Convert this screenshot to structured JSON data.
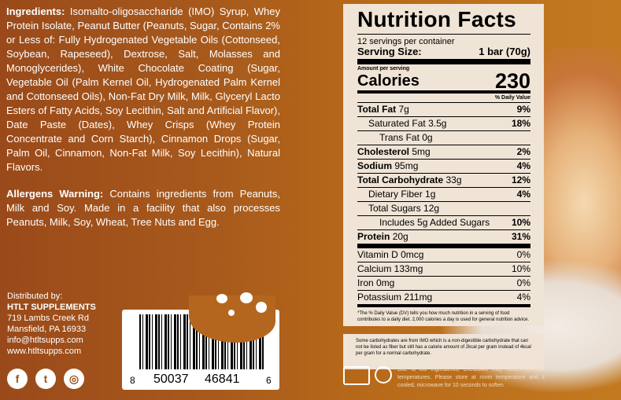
{
  "ingredients": {
    "label": "Ingredients:",
    "text": "Isomalto-oligosaccharide (IMO) Syrup, Whey Protein Isolate, Peanut Butter (Peanuts, Sugar, Contains 2% or Less of: Fully Hydrogenated Vegetable Oils (Cottonseed, Soybean, Rapeseed), Dextrose, Salt, Molasses and Monoglycerides), White Chocolate Coating (Sugar, Vegetable Oil (Palm Kernel Oil, Hydrogenated Palm Kernel and Cottonseed Oils), Non-Fat Dry Milk, Milk, Glyceryl Lacto Esters of Fatty Acids, Soy Lecithin, Salt and Artificial Flavor), Date Paste (Dates), Whey Crisps (Whey Protein Concentrate and Corn Starch), Cinnamon Drops (Sugar, Palm Oil, Cinnamon, Non-Fat Milk, Soy Lecithin), Natural Flavors."
  },
  "allergens": {
    "label": "Allergens Warning:",
    "text": "Contains ingredients from Peanuts, Milk and Soy. Made in a facility that also processes Peanuts, Milk, Soy, Wheat, Tree Nuts and Egg."
  },
  "distributor": {
    "label": "Distributed by:",
    "company": "HTLT SUPPLEMENTS",
    "address1": "719 Lambs Creek Rd",
    "address2": "Mansfield, PA 16933",
    "email": "info@htltsupps.com",
    "website": "www.htltsupps.com"
  },
  "social": [
    {
      "icon": "facebook-icon",
      "glyph": "f"
    },
    {
      "icon": "twitter-icon",
      "glyph": "t"
    },
    {
      "icon": "instagram-icon",
      "glyph": "◎"
    }
  ],
  "barcode": {
    "first": "8",
    "left": "50037",
    "right": "46841",
    "check": "6"
  },
  "nutrition": {
    "title": "Nutrition Facts",
    "servings": "12 servings per container",
    "serving_size_label": "Serving Size:",
    "serving_size": "1 bar (70g)",
    "amount_label": "Amount per serving",
    "calories_label": "Calories",
    "calories": "230",
    "dv_label": "% Daily Value",
    "rows": [
      {
        "name": "Total Fat",
        "amt": "7g",
        "dv": "9%",
        "bold": true
      },
      {
        "name": "Saturated Fat",
        "amt": "3.5g",
        "dv": "18%"
      },
      {
        "name": "Trans Fat",
        "amt": "0g",
        "dv": ""
      },
      {
        "name": "Cholesterol",
        "amt": "5mg",
        "dv": "2%",
        "bold": true
      },
      {
        "name": "Sodium",
        "amt": "95mg",
        "dv": "4%",
        "bold": true
      },
      {
        "name": "Total Carbohydrate",
        "amt": "33g",
        "dv": "12%",
        "bold": true
      },
      {
        "name": "Dietary Fiber",
        "amt": "1g",
        "dv": "4%"
      },
      {
        "name": "Total Sugars",
        "amt": "12g",
        "dv": ""
      },
      {
        "name": "Includes 5g Added Sugars",
        "amt": "",
        "dv": "10%"
      },
      {
        "name": "Protein",
        "amt": "20g",
        "dv": "31%",
        "bold": true
      }
    ],
    "vitamins": [
      {
        "name": "Vitamin D 0mcg",
        "dv": "0%"
      },
      {
        "name": "Calcium 133mg",
        "dv": "10%"
      },
      {
        "name": "Iron 0mg",
        "dv": "0%"
      },
      {
        "name": "Potassium 211mg",
        "dv": "4%"
      }
    ],
    "footnote": "*The % Daily Value (DV) tells you how much nutrition in a serving of food contributes to a daily diet. 2,000 calories a day is used for general nutrition advice."
  },
  "imo_note": "Some carbohydrates are from IMO which is a non-digestible carbohydrate that can not be listed as fiber but still has a calorie amount of 2kcal per gram instead of 4kcal per gram for a normal carbohydrate.",
  "storage_note": "Due to our ingredients, CICOBAR may harden in cold temperatures. Please store at room temperature and if cooled, microwave for 10 seconds to soften."
}
